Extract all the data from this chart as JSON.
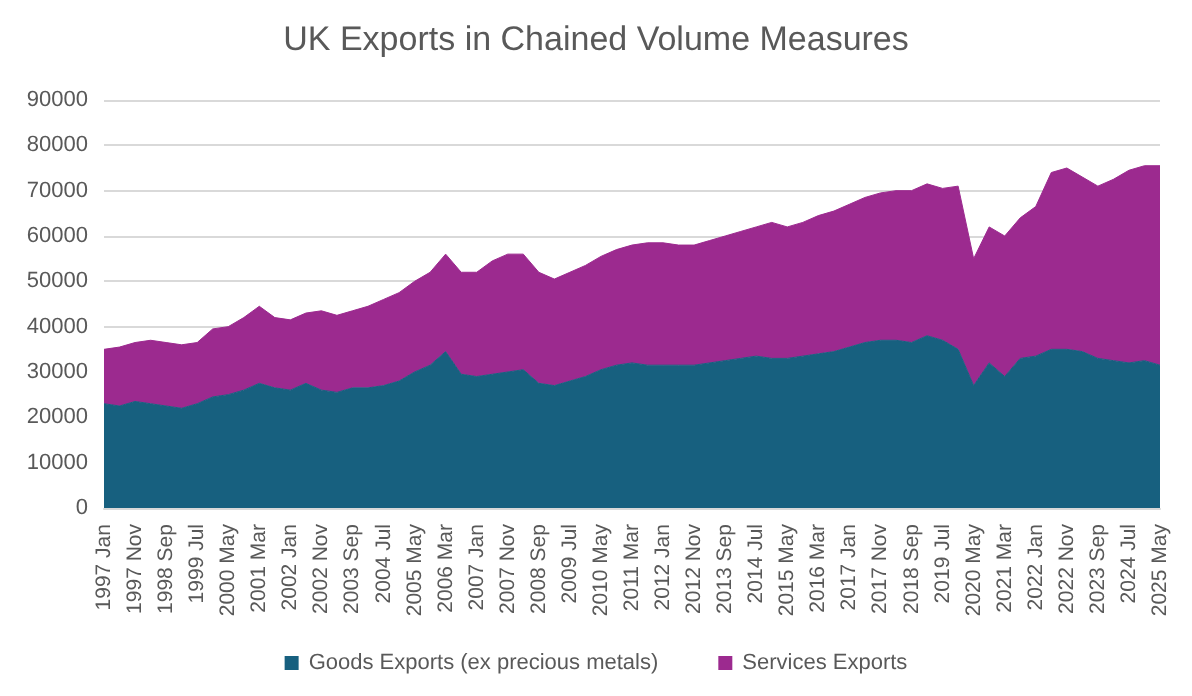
{
  "chart_data": {
    "type": "area",
    "title": "UK Exports in Chained Volume Measures",
    "stacked": true,
    "categories": [
      "1997 Jan",
      null,
      "1997 Nov",
      null,
      "1998 Sep",
      null,
      "1999 Jul",
      null,
      "2000 May",
      null,
      "2001 Mar",
      null,
      "2002 Jan",
      null,
      "2002 Nov",
      null,
      "2003 Sep",
      null,
      "2004 Jul",
      null,
      "2005 May",
      null,
      "2006 Mar",
      null,
      "2007 Jan",
      null,
      "2007 Nov",
      null,
      "2008 Sep",
      null,
      "2009 Jul",
      null,
      "2010 May",
      null,
      "2011 Mar",
      null,
      "2012 Jan",
      null,
      "2012 Nov",
      null,
      "2013 Sep",
      null,
      "2014 Jul",
      null,
      "2015 May",
      null,
      "2016 Mar",
      null,
      "2017 Jan",
      null,
      "2017 Nov",
      null,
      "2018 Sep",
      null,
      "2019 Jul",
      null,
      "2020 May",
      null,
      "2021 Mar",
      null,
      "2022 Jan",
      null,
      "2022 Nov",
      null,
      "2023 Sep",
      null,
      "2024 Jul",
      null,
      "2025 May"
    ],
    "series": [
      {
        "name": "Goods Exports (ex precious metals)",
        "color": "#17607f",
        "values": [
          23000,
          22500,
          23500,
          23000,
          22500,
          22000,
          23000,
          24500,
          25000,
          26000,
          27500,
          26500,
          26000,
          27500,
          26000,
          25500,
          26500,
          26500,
          27000,
          28000,
          30000,
          31500,
          34500,
          29500,
          29000,
          29500,
          30000,
          30500,
          27500,
          27000,
          28000,
          29000,
          30500,
          31500,
          32000,
          31500,
          31500,
          31500,
          31500,
          32000,
          32500,
          33000,
          33500,
          33000,
          33000,
          33500,
          34000,
          34500,
          35500,
          36500,
          37000,
          37000,
          36500,
          38000,
          37000,
          35000,
          27000,
          32000,
          29000,
          33000,
          33500,
          35000,
          35000,
          34500,
          33000,
          32500,
          32000,
          32500,
          31500
        ]
      },
      {
        "name": "Services Exports",
        "color": "#9c2a8f",
        "values": [
          12000,
          13000,
          13000,
          14000,
          14000,
          14000,
          13500,
          15000,
          15000,
          16000,
          17000,
          15500,
          15500,
          15500,
          17500,
          17000,
          17000,
          18000,
          19000,
          19500,
          20000,
          20500,
          21500,
          22500,
          23000,
          25000,
          26000,
          25500,
          24500,
          23500,
          24000,
          24500,
          25000,
          25500,
          26000,
          27000,
          27000,
          26500,
          26500,
          27000,
          27500,
          28000,
          28500,
          30000,
          29000,
          29500,
          30500,
          31000,
          31500,
          32000,
          32500,
          33000,
          33500,
          33500,
          33500,
          36000,
          28000,
          30000,
          31000,
          31000,
          33000,
          39000,
          40000,
          38500,
          38000,
          40000,
          42500,
          43000,
          44000
        ]
      }
    ],
    "ylim": [
      0,
      90000
    ],
    "yticks": [
      0,
      10000,
      20000,
      30000,
      40000,
      50000,
      60000,
      70000,
      80000,
      90000
    ],
    "grid": "y",
    "legend": "bottom"
  }
}
